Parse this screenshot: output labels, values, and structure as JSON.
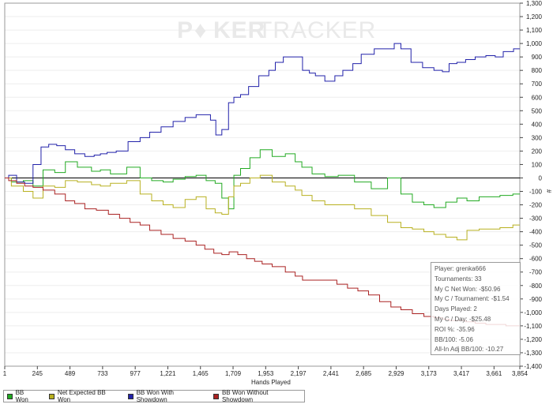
{
  "watermark": {
    "brand_left": "P",
    "brand_chip": "♦",
    "brand_mid": "KER",
    "brand_right": "TRACKER"
  },
  "stats_box": {
    "player": "Player: grenka666",
    "tournaments": "Tournaments: 33",
    "net_won": "My C Net Won: -$50.96",
    "per_tournament": "My C / Tournament: -$1.54",
    "days_played": "Days Played: 2",
    "per_day": "My C / Day: -$25.48",
    "roi": "ROI %: -35.96",
    "bb100": "BB/100: -5.06",
    "allin_bb100": "All-In Adj BB/100: -10.27"
  },
  "chart_data": {
    "type": "line",
    "xlabel": "Hands Played",
    "ylabel": "#",
    "xlim": [
      1,
      3854
    ],
    "ylim": [
      -1400,
      1300
    ],
    "x_ticks": [
      1,
      245,
      489,
      733,
      977,
      1221,
      1465,
      1709,
      1953,
      2197,
      2441,
      2685,
      2929,
      3173,
      3417,
      3661,
      3854
    ],
    "x_tick_labels": [
      "1",
      "245",
      "489",
      "733",
      "977",
      "1,221",
      "1,465",
      "1,709",
      "1,953",
      "2,197",
      "2,441",
      "2,685",
      "2,929",
      "3,173",
      "3,417",
      "3,661",
      "3,854"
    ],
    "y_ticks": [
      1300,
      1200,
      1100,
      1000,
      900,
      800,
      700,
      600,
      500,
      400,
      300,
      200,
      100,
      0,
      -100,
      -200,
      -300,
      -400,
      -500,
      -600,
      -700,
      -800,
      -900,
      -1000,
      -1100,
      -1200,
      -1300,
      -1400
    ],
    "y_tick_labels": [
      "1,300",
      "1,200",
      "1,100",
      "1,000",
      "900",
      "800",
      "700",
      "600",
      "500",
      "400",
      "300",
      "200",
      "100",
      "0",
      "-100",
      "-200",
      "-300",
      "-400",
      "-500",
      "-600",
      "-700",
      "-800",
      "-900",
      "-1,000",
      "-1,100",
      "-1,200",
      "-1,300",
      "-1,400"
    ],
    "zero_line": true,
    "legend_position": "bottom-left",
    "series": [
      {
        "name": "BB Won",
        "color": "#22aa22",
        "x": [
          1,
          100,
          180,
          245,
          330,
          420,
          489,
          600,
          700,
          733,
          850,
          977,
          1050,
          1150,
          1221,
          1300,
          1400,
          1465,
          1550,
          1600,
          1650,
          1700,
          1730,
          1800,
          1870,
          1953,
          2050,
          2150,
          2197,
          2250,
          2350,
          2441,
          2550,
          2685,
          2800,
          2929,
          3000,
          3100,
          3173,
          3250,
          3350,
          3417,
          3500,
          3600,
          3661,
          3750,
          3854
        ],
        "y": [
          0,
          -30,
          -20,
          -60,
          60,
          40,
          120,
          80,
          50,
          60,
          30,
          80,
          0,
          -20,
          -30,
          -10,
          10,
          20,
          -20,
          -40,
          -150,
          -230,
          20,
          70,
          150,
          210,
          160,
          180,
          120,
          80,
          30,
          10,
          20,
          -30,
          -80,
          0,
          -120,
          -180,
          -200,
          -220,
          -180,
          -150,
          -170,
          -140,
          -140,
          -130,
          -120
        ]
      },
      {
        "name": "Net Expected BB Won",
        "color": "#b8b020",
        "x": [
          1,
          100,
          180,
          245,
          330,
          420,
          489,
          600,
          700,
          733,
          850,
          977,
          1050,
          1150,
          1221,
          1300,
          1400,
          1465,
          1550,
          1600,
          1650,
          1700,
          1730,
          1800,
          1870,
          1953,
          2050,
          2150,
          2197,
          2250,
          2350,
          2441,
          2550,
          2685,
          2800,
          2929,
          3000,
          3100,
          3173,
          3250,
          3350,
          3417,
          3500,
          3600,
          3661,
          3750,
          3854
        ],
        "y": [
          0,
          -60,
          -100,
          -150,
          -60,
          -70,
          -20,
          -30,
          -50,
          -60,
          -40,
          -20,
          -120,
          -170,
          -200,
          -220,
          -160,
          -140,
          -230,
          -260,
          -270,
          -140,
          -60,
          -40,
          0,
          20,
          -30,
          -60,
          -90,
          -130,
          -170,
          -200,
          -200,
          -230,
          -280,
          -330,
          -370,
          -380,
          -400,
          -420,
          -440,
          -460,
          -390,
          -380,
          -380,
          -370,
          -350
        ]
      },
      {
        "name": "BB Won With Showdown",
        "color": "#2222aa",
        "x": [
          1,
          60,
          120,
          180,
          245,
          300,
          360,
          420,
          489,
          560,
          640,
          700,
          733,
          800,
          870,
          977,
          1050,
          1120,
          1221,
          1300,
          1400,
          1465,
          1520,
          1560,
          1600,
          1650,
          1700,
          1730,
          1800,
          1850,
          1953,
          2000,
          2050,
          2120,
          2197,
          2260,
          2300,
          2350,
          2441,
          2500,
          2560,
          2650,
          2685,
          2730,
          2800,
          2900,
          2929,
          3000,
          3080,
          3173,
          3250,
          3300,
          3350,
          3417,
          3480,
          3560,
          3640,
          3700,
          3760,
          3854
        ],
        "y": [
          0,
          20,
          -30,
          -40,
          100,
          230,
          250,
          240,
          210,
          180,
          160,
          170,
          180,
          190,
          200,
          270,
          300,
          340,
          380,
          420,
          450,
          470,
          470,
          430,
          320,
          360,
          560,
          600,
          620,
          680,
          760,
          800,
          860,
          900,
          900,
          800,
          780,
          760,
          720,
          760,
          800,
          850,
          920,
          920,
          960,
          960,
          1000,
          960,
          860,
          820,
          800,
          790,
          850,
          860,
          880,
          900,
          910,
          900,
          940,
          960
        ]
      },
      {
        "name": "BB Won Without Showdown",
        "color": "#aa2222",
        "x": [
          1,
          60,
          120,
          180,
          245,
          330,
          420,
          489,
          560,
          640,
          733,
          820,
          900,
          977,
          1050,
          1120,
          1221,
          1300,
          1400,
          1465,
          1530,
          1600,
          1650,
          1709,
          1780,
          1840,
          1900,
          1953,
          2050,
          2150,
          2197,
          2260,
          2330,
          2441,
          2530,
          2600,
          2685,
          2760,
          2850,
          2929,
          3000,
          3100,
          3173,
          3250,
          3300,
          3350,
          3417,
          3480,
          3560,
          3640,
          3720,
          3780,
          3854
        ],
        "y": [
          0,
          -20,
          -40,
          -60,
          -70,
          -90,
          -120,
          -170,
          -190,
          -230,
          -240,
          -270,
          -300,
          -330,
          -350,
          -390,
          -420,
          -450,
          -470,
          -500,
          -530,
          -560,
          -570,
          -550,
          -570,
          -600,
          -620,
          -640,
          -660,
          -700,
          -730,
          -760,
          -760,
          -760,
          -790,
          -820,
          -840,
          -870,
          -920,
          -960,
          -980,
          -1010,
          -1030,
          -1040,
          -1050,
          -1060,
          -1060,
          -1070,
          -1080,
          -1090,
          -1090,
          -1100,
          -1100
        ]
      }
    ]
  }
}
